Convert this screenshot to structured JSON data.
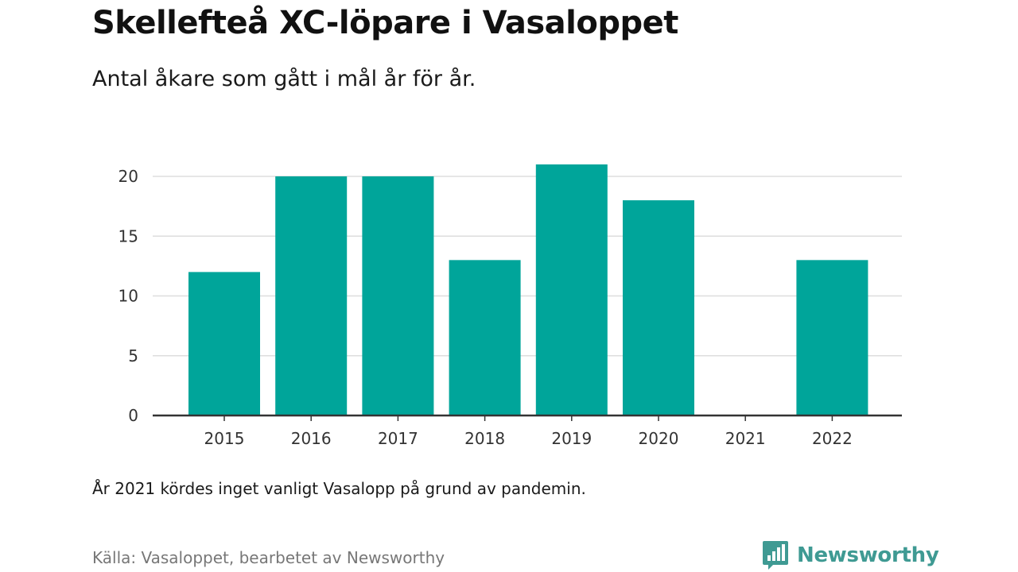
{
  "title": "Skellefteå XC-löpare i Vasaloppet",
  "subtitle": "Antal åkare som gått i mål år för år.",
  "note": "År 2021 kördes inget vanligt Vasalopp på grund av pandemin.",
  "source": "Källa: Vasaloppet, bearbetet av Newsworthy",
  "brand": {
    "name": "Newsworthy",
    "icon": "newsworthy-logo-icon",
    "color": "#3f9a93"
  },
  "colors": {
    "bar": "#00a59a",
    "grid": "#dddddd",
    "axis": "#333333"
  },
  "chart_data": {
    "type": "bar",
    "categories": [
      "2015",
      "2016",
      "2017",
      "2018",
      "2019",
      "2020",
      "2021",
      "2022"
    ],
    "values": [
      12,
      20,
      20,
      13,
      21,
      18,
      0,
      13
    ],
    "ylim": [
      0,
      21
    ],
    "yticks": [
      0,
      5,
      10,
      15,
      20
    ],
    "xlabel": "",
    "ylabel": "",
    "grid": true,
    "legend": "none"
  }
}
